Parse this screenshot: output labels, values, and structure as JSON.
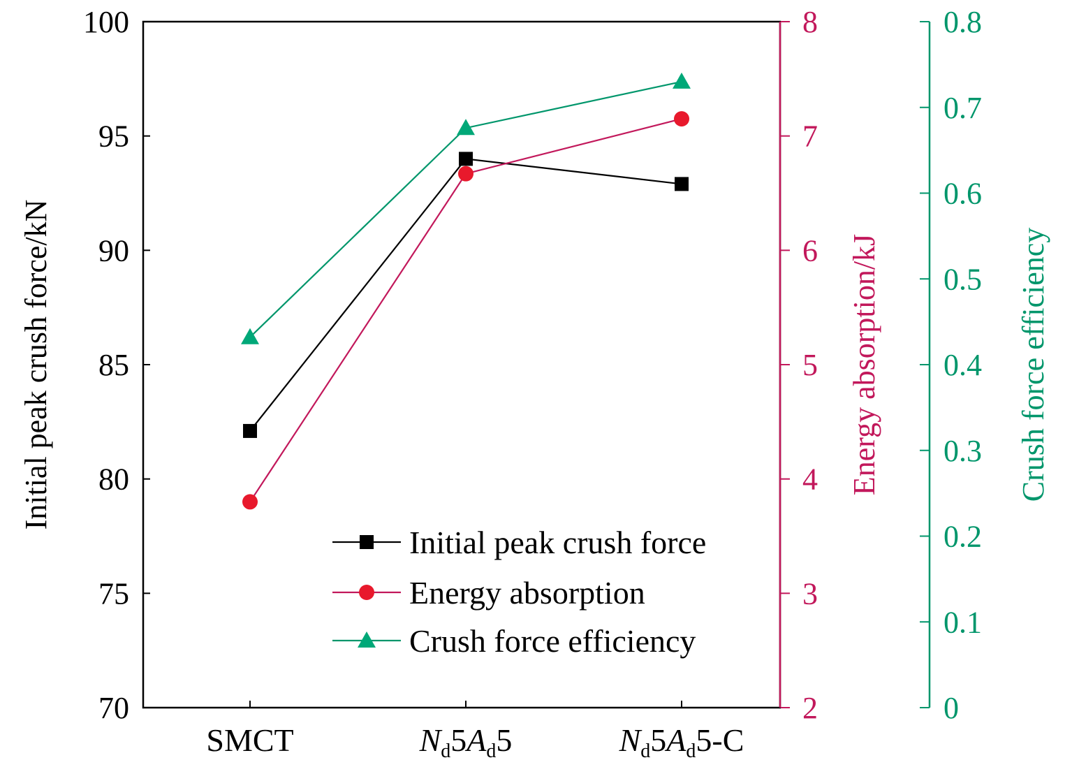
{
  "chart_data": {
    "type": "line",
    "categories": [
      {
        "label": "SMCT",
        "parts": [
          {
            "t": "SMCT",
            "style": "normal"
          }
        ]
      },
      {
        "label": "Nd5Ad5",
        "parts": [
          {
            "t": "N",
            "style": "italic"
          },
          {
            "t": "d",
            "style": "sub"
          },
          {
            "t": "5",
            "style": "normal"
          },
          {
            "t": "A",
            "style": "italic"
          },
          {
            "t": "d",
            "style": "sub"
          },
          {
            "t": "5",
            "style": "normal"
          }
        ]
      },
      {
        "label": "Nd5Ad5-C",
        "parts": [
          {
            "t": "N",
            "style": "italic"
          },
          {
            "t": "d",
            "style": "sub"
          },
          {
            "t": "5",
            "style": "normal"
          },
          {
            "t": "A",
            "style": "italic"
          },
          {
            "t": "d",
            "style": "sub"
          },
          {
            "t": "5-C",
            "style": "normal"
          }
        ]
      }
    ],
    "axes": {
      "left": {
        "label": "Initial peak crush force/kN",
        "range": [
          70,
          100
        ],
        "ticks": [
          70,
          75,
          80,
          85,
          90,
          95,
          100
        ],
        "color": "#000000"
      },
      "right1": {
        "label": "Energy absorption/kJ",
        "range": [
          2,
          8
        ],
        "ticks": [
          2,
          3,
          4,
          5,
          6,
          7,
          8
        ],
        "color": "#c2185b"
      },
      "right2": {
        "label": "Crush force efficiency",
        "range": [
          0,
          0.8
        ],
        "ticks": [
          "0",
          "0.1",
          "0.2",
          "0.3",
          "0.4",
          "0.5",
          "0.6",
          "0.7",
          "0.8"
        ],
        "color": "#00966b"
      }
    },
    "series": [
      {
        "name": "Initial peak crush force",
        "axis": "left",
        "values": [
          82.1,
          94.0,
          92.9
        ],
        "color": "#000000",
        "marker": "square",
        "marker_color": "#000000"
      },
      {
        "name": "Energy absorption",
        "axis": "right1",
        "values": [
          3.8,
          6.67,
          7.15
        ],
        "color": "#c2185b",
        "marker": "circle",
        "marker_color": "#e8192c"
      },
      {
        "name": "Crush force efficiency",
        "axis": "right2",
        "values": [
          0.432,
          0.676,
          0.73
        ],
        "color": "#00966b",
        "marker": "triangle",
        "marker_color": "#00a878"
      }
    ],
    "legend": {
      "placement": "lower-right inside plot"
    },
    "grid": false
  }
}
